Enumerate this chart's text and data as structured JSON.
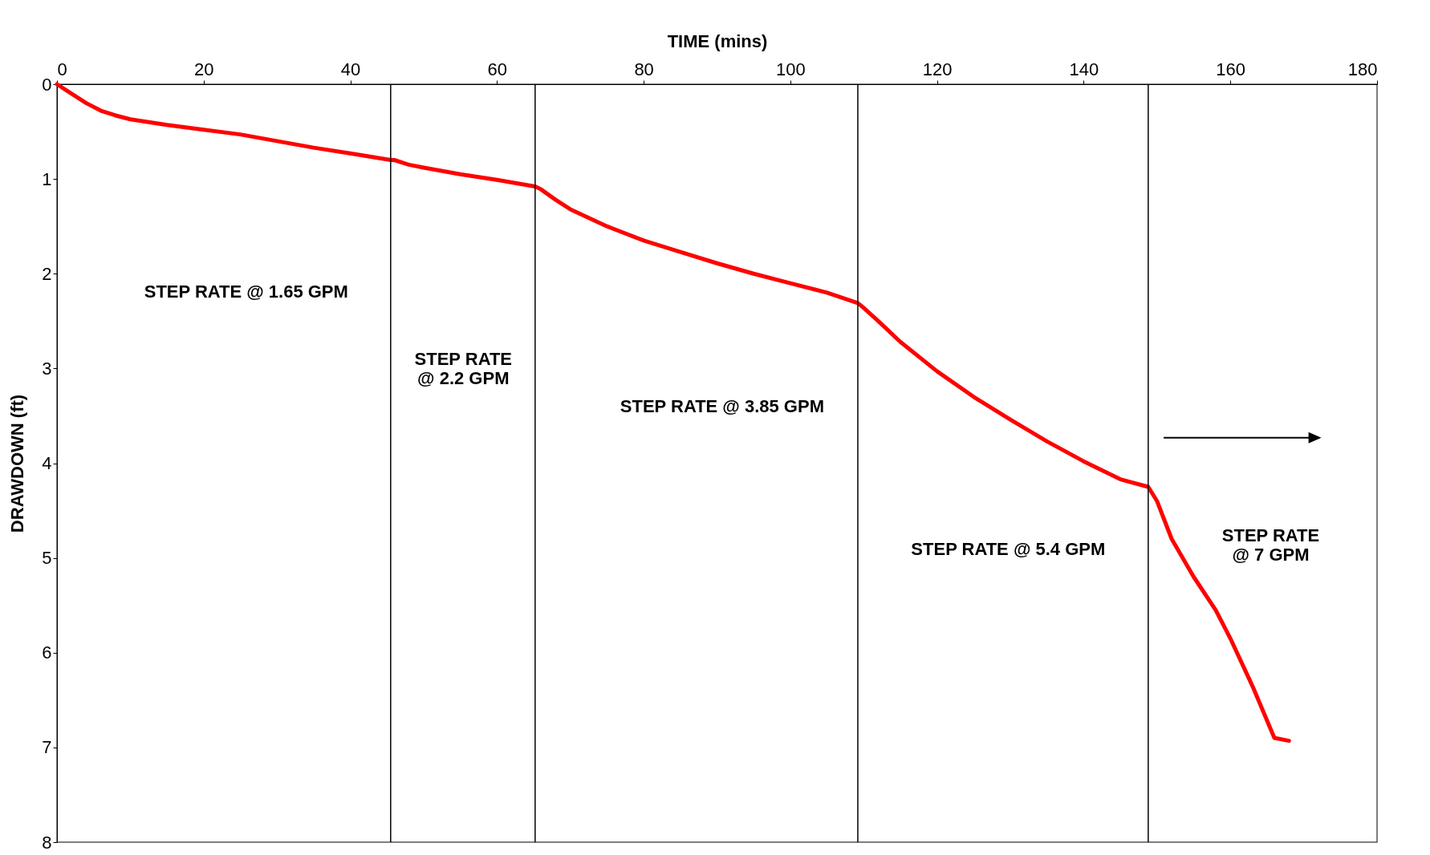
{
  "chart_data": {
    "type": "line",
    "xlabel": "TIME (mins)",
    "ylabel": "DRAWDOWN (ft)",
    "xlim": [
      0,
      180
    ],
    "xticks": [
      0,
      20,
      40,
      60,
      80,
      100,
      120,
      140,
      160,
      180
    ],
    "ylim": [
      8,
      0
    ],
    "yticks": [
      0,
      1,
      2,
      3,
      4,
      5,
      6,
      7,
      8
    ],
    "grid": false,
    "line_style": "solid",
    "marker": "none",
    "series": [
      {
        "color": "#ff0000",
        "x": [
          0,
          2,
          4,
          6,
          8,
          10,
          15,
          20,
          25,
          30,
          35,
          40,
          45.5,
          46,
          48,
          50,
          55,
          60,
          65.2,
          66,
          68,
          70,
          75,
          80,
          85,
          90,
          95,
          100,
          105,
          109.2,
          110,
          112,
          115,
          120,
          125,
          130,
          135,
          140,
          145,
          148.8,
          150,
          152,
          155,
          158,
          160,
          163,
          166,
          168
        ],
        "values": [
          0,
          0.1,
          0.2,
          0.28,
          0.33,
          0.37,
          0.43,
          0.48,
          0.53,
          0.6,
          0.67,
          0.73,
          0.8,
          0.8,
          0.85,
          0.88,
          0.95,
          1.01,
          1.08,
          1.11,
          1.22,
          1.32,
          1.5,
          1.65,
          1.77,
          1.89,
          2.0,
          2.1,
          2.2,
          2.31,
          2.36,
          2.5,
          2.72,
          3.03,
          3.3,
          3.54,
          3.77,
          3.98,
          4.17,
          4.25,
          4.4,
          4.8,
          5.2,
          5.55,
          5.85,
          6.35,
          6.9,
          6.93
        ]
      }
    ],
    "ref_lines": [
      {
        "axis": "x",
        "value": 45.5,
        "color": "#000000"
      },
      {
        "axis": "x",
        "value": 65.2,
        "color": "#000000"
      },
      {
        "axis": "x",
        "value": 109.2,
        "color": "#000000"
      },
      {
        "axis": "x",
        "value": 148.8,
        "color": "#000000"
      }
    ],
    "annotations": [
      "STEP RATE @ 1.65 GPM",
      "STEP RATE\n@ 2.2 GPM",
      "STEP RATE @ 3.85 GPM",
      "STEP RATE @ 5.4 GPM",
      "STEP RATE\n@ 7 GPM"
    ]
  }
}
